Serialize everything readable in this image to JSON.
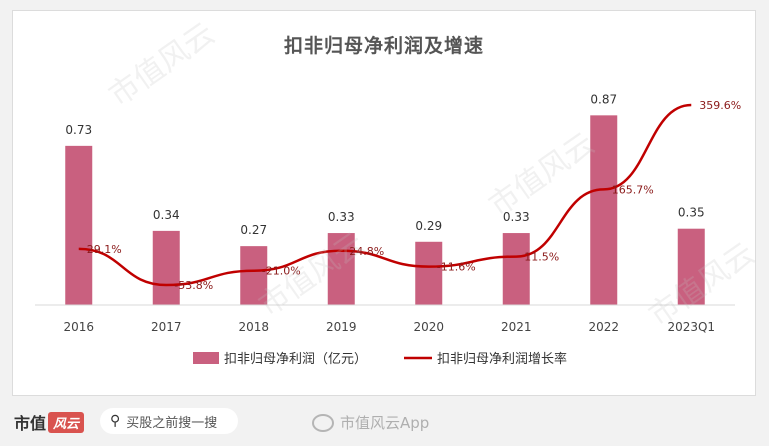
{
  "chart_data": {
    "type": "bar",
    "title": "扣非归母净利润及增速",
    "categories": [
      "2016",
      "2017",
      "2018",
      "2019",
      "2020",
      "2021",
      "2022",
      "2023Q1"
    ],
    "series": [
      {
        "name": "扣非归母净利润（亿元）",
        "type": "bar",
        "values": [
          0.73,
          0.34,
          0.27,
          0.33,
          0.29,
          0.33,
          0.87,
          0.35
        ],
        "labels": [
          "0.73",
          "0.34",
          "0.27",
          "0.33",
          "0.29",
          "0.33",
          "0.87",
          "0.35"
        ],
        "color": "#c9607f"
      },
      {
        "name": "扣非归母净利润增长率",
        "type": "line",
        "values": [
          29.1,
          -53.8,
          -21.0,
          24.8,
          -11.6,
          11.5,
          165.7,
          359.6
        ],
        "labels": [
          "29.1%",
          "-53.8%",
          "-21.0%",
          "24.8%",
          "-11.6%",
          "11.5%",
          "165.7%",
          "359.6%"
        ],
        "color": "#c00000"
      }
    ],
    "legend_position": "bottom",
    "grid": false
  },
  "footer": {
    "brand": "市值",
    "brand_badge": "风云",
    "search_text": "买股之前搜一搜",
    "weibo_text": "市值风云App"
  },
  "watermark": "市值风云"
}
